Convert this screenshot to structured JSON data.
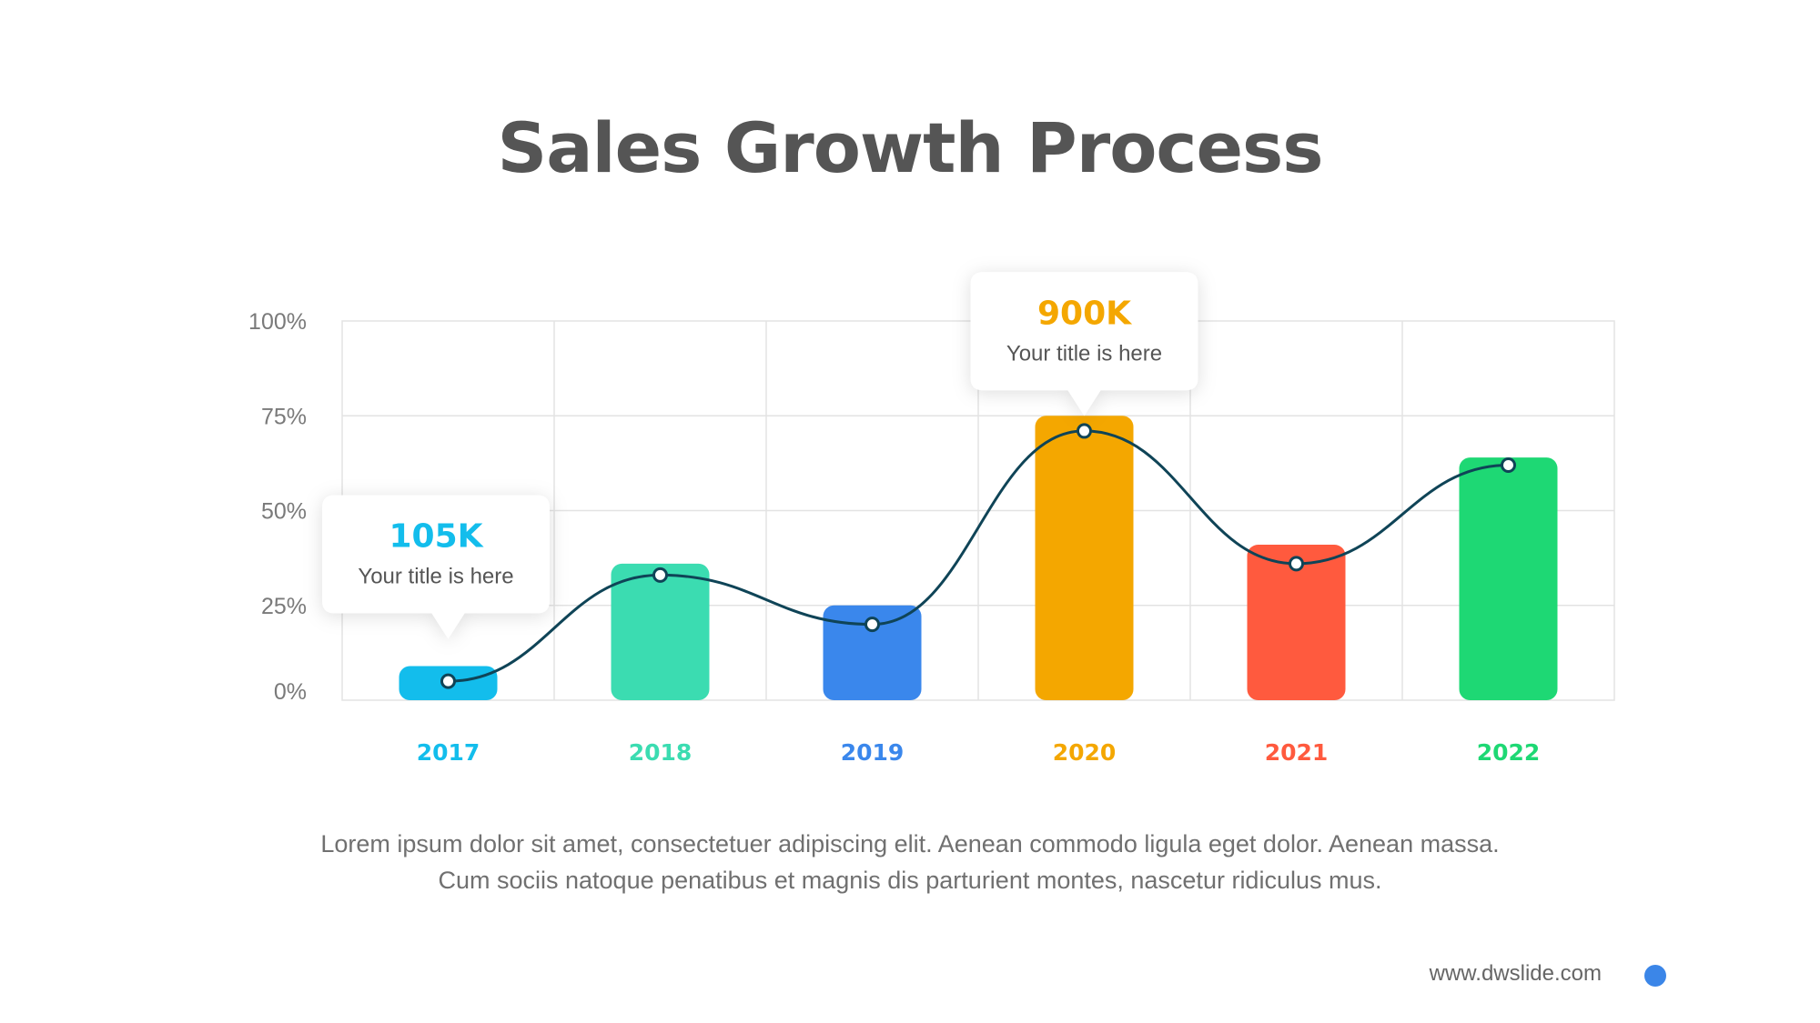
{
  "title": "Sales Growth Process",
  "description": "Lorem ipsum dolor sit amet, consectetuer adipiscing elit. Aenean commodo ligula eget dolor. Aenean massa. Cum sociis natoque penatibus et magnis dis parturient montes, nascetur ridiculus mus.",
  "website": "www.dwslide.com",
  "colors": {
    "title": "#555555",
    "line": "#0f4457",
    "grid": "#e3e3e3",
    "accent_dot": "#3b86e8"
  },
  "chart_data": {
    "type": "bar",
    "title": "Sales Growth Process",
    "categories": [
      "2017",
      "2018",
      "2019",
      "2020",
      "2021",
      "2022"
    ],
    "values": [
      9,
      36,
      25,
      75,
      41,
      64
    ],
    "line_values": [
      5,
      33,
      20,
      71,
      36,
      62
    ],
    "colors": [
      "#13bdec",
      "#3bdcb1",
      "#3a87ec",
      "#f4a700",
      "#ff5a3e",
      "#1ed874"
    ],
    "ylim": [
      0,
      100
    ],
    "yticks": [
      0,
      25,
      50,
      75,
      100
    ],
    "ytick_labels": [
      "0%",
      "25%",
      "50%",
      "75%",
      "100%"
    ],
    "xlabel": "",
    "ylabel": "",
    "grid": true,
    "callouts": [
      {
        "category_index": 0,
        "value": "105K",
        "label": "Your title is here",
        "color": "#13bdec"
      },
      {
        "category_index": 3,
        "value": "900K",
        "label": "Your title is here",
        "color": "#f4a700"
      }
    ]
  }
}
